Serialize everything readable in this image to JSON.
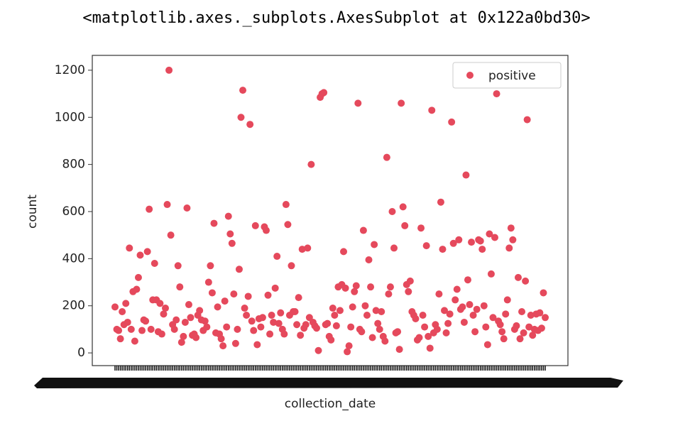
{
  "header": "<matplotlib.axes._subplots.AxesSubplot at 0x122a0bd30>",
  "chart_data": {
    "type": "scatter",
    "xlabel": "collection_date",
    "ylabel": "count",
    "categories": [
      null,
      null,
      null,
      null,
      null,
      null,
      null,
      null,
      null,
      null,
      null,
      null,
      null,
      null,
      null,
      null,
      null,
      null,
      null,
      null,
      null,
      null,
      null,
      null,
      null,
      null,
      null,
      null,
      null,
      null,
      null,
      null,
      null,
      null,
      null,
      null,
      null,
      null,
      null,
      null,
      null,
      null,
      null,
      null,
      null,
      null,
      null,
      null,
      null,
      null,
      null,
      null,
      null,
      null,
      null,
      null,
      null,
      null,
      null,
      null,
      null,
      null,
      null,
      null,
      null,
      null,
      null,
      null,
      null,
      null,
      null,
      null,
      null,
      null,
      null,
      null,
      null,
      null,
      null,
      null,
      null,
      null,
      null,
      null,
      null,
      null,
      null,
      null,
      null,
      null,
      null,
      null,
      null,
      null,
      null,
      null,
      null,
      null,
      null,
      null,
      null,
      null,
      null,
      null,
      null,
      null,
      null,
      null,
      null,
      null,
      null,
      null,
      null,
      null,
      null,
      null,
      null,
      null,
      null,
      null,
      null,
      null,
      null,
      null,
      null,
      null,
      null,
      null,
      null,
      null,
      null,
      null,
      null,
      null,
      null,
      null,
      null,
      null,
      null,
      null,
      null,
      null,
      null,
      null,
      null,
      null,
      null,
      null,
      null,
      null,
      null,
      null,
      null,
      null,
      null,
      null,
      null,
      null,
      null,
      null,
      null,
      null,
      null,
      null,
      null,
      null,
      null,
      null,
      null,
      null,
      null,
      null,
      null,
      null,
      null,
      null,
      null,
      null,
      null,
      null,
      null,
      null,
      null,
      null,
      null,
      null,
      null,
      null,
      null,
      null,
      null,
      null,
      null,
      null,
      null,
      null,
      null,
      null,
      null,
      null,
      null,
      null,
      null,
      null,
      null,
      null,
      null,
      null,
      null,
      null,
      null,
      null,
      null,
      null,
      null,
      null,
      null,
      null,
      null,
      null,
      null,
      null,
      null,
      null,
      null,
      null,
      null,
      null,
      null,
      null,
      null,
      null,
      null,
      null,
      null,
      null,
      null,
      null,
      null,
      null
    ],
    "series": [
      {
        "name": "positive",
        "color": "#e5495c",
        "values": [
          195,
          100,
          95,
          60,
          175,
          120,
          210,
          130,
          445,
          100,
          260,
          50,
          270,
          320,
          415,
          95,
          140,
          135,
          430,
          610,
          100,
          225,
          380,
          225,
          90,
          210,
          80,
          165,
          190,
          630,
          1200,
          500,
          120,
          100,
          140,
          370,
          280,
          45,
          70,
          130,
          615,
          205,
          150,
          75,
          80,
          65,
          160,
          180,
          140,
          95,
          135,
          110,
          300,
          370,
          255,
          550,
          85,
          195,
          80,
          60,
          30,
          220,
          110,
          580,
          505,
          465,
          250,
          40,
          100,
          355,
          1000,
          1115,
          190,
          160,
          240,
          970,
          135,
          95,
          540,
          35,
          145,
          110,
          150,
          535,
          520,
          245,
          80,
          160,
          130,
          275,
          410,
          125,
          170,
          100,
          80,
          630,
          545,
          160,
          370,
          175,
          175,
          120,
          235,
          75,
          440,
          105,
          120,
          445,
          150,
          800,
          130,
          115,
          105,
          10,
          1085,
          1100,
          1105,
          120,
          125,
          70,
          55,
          190,
          160,
          115,
          280,
          180,
          290,
          430,
          275,
          5,
          30,
          110,
          195,
          260,
          285,
          1060,
          100,
          90,
          520,
          200,
          160,
          395,
          280,
          65,
          460,
          180,
          125,
          100,
          175,
          70,
          50,
          830,
          250,
          280,
          600,
          445,
          85,
          90,
          15,
          1060,
          620,
          540,
          290,
          260,
          305,
          175,
          160,
          145,
          55,
          65,
          530,
          160,
          110,
          455,
          70,
          20,
          1030,
          85,
          120,
          100,
          250,
          640,
          440,
          180,
          85,
          125,
          165,
          980,
          465,
          225,
          270,
          480,
          185,
          195,
          130,
          755,
          310,
          205,
          470,
          160,
          90,
          185,
          480,
          475,
          440,
          200,
          110,
          35,
          505,
          335,
          150,
          490,
          1100,
          135,
          120,
          90,
          60,
          165,
          225,
          445,
          530,
          480,
          100,
          115,
          320,
          60,
          175,
          85,
          305,
          990,
          110,
          160,
          75,
          100,
          165,
          95,
          170,
          105,
          255,
          150
        ]
      }
    ],
    "ylim": [
      -54,
      1263
    ],
    "yticks": [
      0,
      200,
      400,
      600,
      800,
      1000,
      1200
    ],
    "legend": "upper right"
  }
}
